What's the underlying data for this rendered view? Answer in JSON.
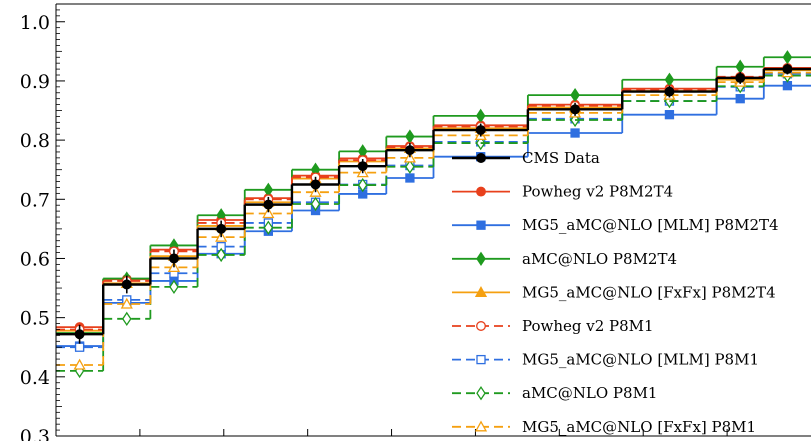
{
  "chart_data": {
    "type": "line",
    "step": true,
    "x_edges": [
      0,
      1,
      2,
      3,
      4,
      5,
      6,
      7,
      8,
      9,
      10,
      11,
      12,
      13,
      14,
      15,
      16
    ],
    "ylim": [
      0.3,
      1.03
    ],
    "y_ticks": [
      0.3,
      0.4,
      0.5,
      0.6,
      0.7,
      0.8,
      0.9,
      1.0
    ],
    "y_tick_labels": [
      "0.3",
      "0.4",
      "0.5",
      "0.6",
      "0.7",
      "0.8",
      "0.9",
      "1.0"
    ],
    "legend_position": "bottom-right",
    "series": [
      {
        "name": "CMS Data",
        "color": "#000000",
        "dash": "solid",
        "marker": "circle-filled",
        "values": [
          0.472,
          0.556,
          0.6,
          0.65,
          0.691,
          0.725,
          0.756,
          0.783,
          0.817,
          0.817,
          0.852,
          0.852,
          0.882,
          0.882,
          0.905,
          0.92
        ],
        "errors": [
          0.016,
          0.015,
          0.015,
          0.014,
          0.013,
          0.013,
          0.012,
          0.012,
          0.011,
          0.011,
          0.011,
          0.011,
          0.01,
          0.01,
          0.01,
          0.009
        ]
      },
      {
        "name": "Powheg v2 P8M2T4",
        "color": "#e8401c",
        "dash": "solid",
        "marker": "circle-filled",
        "values": [
          0.484,
          0.565,
          0.615,
          0.665,
          0.702,
          0.74,
          0.769,
          0.79,
          0.825,
          0.825,
          0.86,
          0.86,
          0.887,
          0.887,
          0.906,
          0.922
        ]
      },
      {
        "name": "MG5_aMC@NLO [MLM] P8M2T4",
        "color": "#2f6fe0",
        "dash": "solid",
        "marker": "square-filled",
        "values": [
          0.452,
          0.525,
          0.562,
          0.608,
          0.646,
          0.681,
          0.709,
          0.736,
          0.772,
          0.772,
          0.812,
          0.812,
          0.843,
          0.843,
          0.87,
          0.892
        ]
      },
      {
        "name": "aMC@NLO P8M2T4",
        "color": "#1f9a1f",
        "dash": "solid",
        "marker": "diamond-filled",
        "values": [
          0.474,
          0.566,
          0.622,
          0.673,
          0.716,
          0.75,
          0.781,
          0.806,
          0.841,
          0.841,
          0.876,
          0.876,
          0.902,
          0.902,
          0.924,
          0.94
        ]
      },
      {
        "name": "MG5_aMC@NLO [FxFx] P8M2T4",
        "color": "#f5a010",
        "dash": "solid",
        "marker": "triangle-filled",
        "values": [
          0.478,
          0.558,
          0.604,
          0.655,
          0.695,
          0.735,
          0.764,
          0.786,
          0.82,
          0.82,
          0.855,
          0.855,
          0.883,
          0.883,
          0.902,
          0.918
        ]
      },
      {
        "name": "Powheg v2 P8M1",
        "color": "#e8401c",
        "dash": "dashed",
        "marker": "circle-open",
        "values": [
          0.48,
          0.562,
          0.612,
          0.66,
          0.7,
          0.737,
          0.766,
          0.788,
          0.823,
          0.823,
          0.858,
          0.858,
          0.885,
          0.885,
          0.907,
          0.921
        ]
      },
      {
        "name": "MG5_aMC@NLO [MLM] P8M1",
        "color": "#2f6fe0",
        "dash": "dashed",
        "marker": "square-open",
        "values": [
          0.45,
          0.53,
          0.575,
          0.62,
          0.66,
          0.695,
          0.725,
          0.757,
          0.797,
          0.797,
          0.836,
          0.836,
          0.866,
          0.866,
          0.89,
          0.912
        ]
      },
      {
        "name": "aMC@NLO P8M1",
        "color": "#1f9a1f",
        "dash": "dashed",
        "marker": "diamond-open",
        "values": [
          0.41,
          0.498,
          0.552,
          0.606,
          0.652,
          0.692,
          0.724,
          0.755,
          0.795,
          0.795,
          0.834,
          0.834,
          0.866,
          0.866,
          0.891,
          0.909
        ]
      },
      {
        "name": "MG5_aMC@NLO [FxFx] P8M1",
        "color": "#f5a010",
        "dash": "dashed",
        "marker": "triangle-open",
        "values": [
          0.42,
          0.523,
          0.585,
          0.636,
          0.676,
          0.712,
          0.745,
          0.77,
          0.808,
          0.808,
          0.846,
          0.846,
          0.876,
          0.876,
          0.898,
          0.914
        ]
      }
    ]
  }
}
